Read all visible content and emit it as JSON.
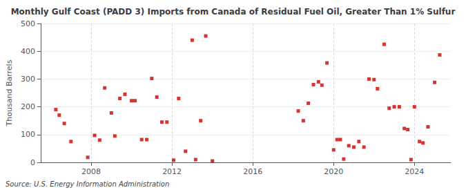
{
  "chart_data": {
    "type": "scatter",
    "title": "Monthly Gulf Coast (PADD 3) Imports from Canada of Residual Fuel Oil, Greater Than 1% Sulfur",
    "ylabel": "Thousand Barrels",
    "annotations": [
      "Source: U.S. Energy Information Administration"
    ],
    "color": "#cc0000",
    "marker": "square",
    "grid": true,
    "xlim": [
      2005.5,
      2025.8
    ],
    "xticks": [
      2008,
      2012,
      2016,
      2020,
      2024
    ],
    "ylim": [
      0,
      500
    ],
    "yticks": [
      0,
      100,
      200,
      300,
      400,
      500
    ],
    "x": [
      2006.25,
      2006.42,
      2006.67,
      2007.0,
      2007.83,
      2008.17,
      2008.42,
      2008.67,
      2009.0,
      2009.17,
      2009.42,
      2009.67,
      2010.0,
      2010.17,
      2010.5,
      2010.75,
      2011.0,
      2011.25,
      2011.5,
      2011.75,
      2012.08,
      2012.33,
      2012.67,
      2013.0,
      2013.17,
      2013.42,
      2013.67,
      2014.0,
      2018.25,
      2018.5,
      2018.75,
      2019.0,
      2019.25,
      2019.42,
      2019.67,
      2020.0,
      2020.17,
      2020.33,
      2020.5,
      2020.75,
      2021.0,
      2021.25,
      2021.5,
      2021.75,
      2022.0,
      2022.17,
      2022.5,
      2022.75,
      2023.0,
      2023.25,
      2023.5,
      2023.67,
      2023.83,
      2024.0,
      2024.25,
      2024.42,
      2024.67,
      2025.0,
      2025.25
    ],
    "values": [
      190,
      170,
      140,
      75,
      18,
      97,
      80,
      268,
      178,
      95,
      230,
      245,
      222,
      222,
      82,
      82,
      302,
      235,
      145,
      145,
      8,
      230,
      40,
      440,
      10,
      150,
      455,
      5,
      185,
      150,
      213,
      280,
      290,
      278,
      358,
      45,
      82,
      82,
      12,
      60,
      55,
      75,
      55,
      300,
      298,
      265,
      425,
      195,
      200,
      200,
      122,
      118,
      10,
      200,
      75,
      70,
      128,
      288,
      387
    ]
  }
}
